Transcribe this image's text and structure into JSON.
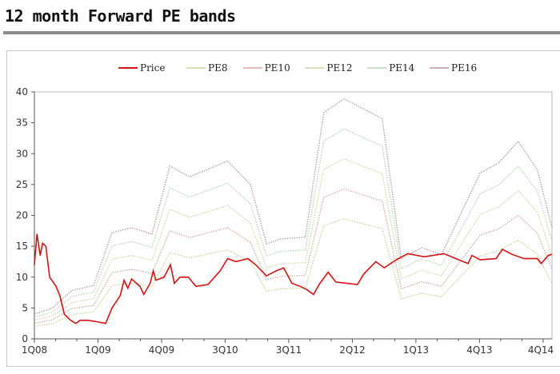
{
  "header": {
    "title": "12 month Forward PE bands"
  },
  "chart_data": {
    "type": "line",
    "title": "12 month Forward PE bands",
    "xlabel": "",
    "ylabel": "",
    "ylim": [
      0,
      40
    ],
    "yticks": [
      0,
      5,
      10,
      15,
      20,
      25,
      30,
      35,
      40
    ],
    "xlim": [
      0,
      8.14
    ],
    "xtick_labels": [
      "1Q08",
      "1Q09",
      "4Q09",
      "3Q10",
      "3Q11",
      "2Q12",
      "1Q13",
      "4Q13",
      "4Q14"
    ],
    "legend_position": "top-center",
    "grid": false,
    "band_x": [
      0,
      0.28,
      0.59,
      0.93,
      1.22,
      1.53,
      1.85,
      2.13,
      2.44,
      3.04,
      3.4,
      3.65,
      3.86,
      4.26,
      4.55,
      4.87,
      5.47,
      5.77,
      6.09,
      6.4,
      7.01,
      7.3,
      7.61,
      7.91,
      8.14
    ],
    "series": [
      {
        "name": "Price",
        "color": "#d01414",
        "style": "solid",
        "x": [
          0,
          0.04,
          0.09,
          0.13,
          0.18,
          0.24,
          0.34,
          0.4,
          0.47,
          0.57,
          0.65,
          0.72,
          0.84,
          0.97,
          1.12,
          1.22,
          1.35,
          1.41,
          1.47,
          1.53,
          1.66,
          1.72,
          1.82,
          1.87,
          1.91,
          2.04,
          2.14,
          2.2,
          2.29,
          2.42,
          2.54,
          2.73,
          2.92,
          3.04,
          3.17,
          3.36,
          3.48,
          3.65,
          3.8,
          3.92,
          4.05,
          4.18,
          4.28,
          4.39,
          4.49,
          4.62,
          4.74,
          5.08,
          5.18,
          5.37,
          5.5,
          5.69,
          5.87,
          6.13,
          6.44,
          6.63,
          6.82,
          6.88,
          7.01,
          7.26,
          7.36,
          7.51,
          7.7,
          7.91,
          7.97,
          8.08,
          8.14
        ],
        "values": [
          12,
          17,
          13.5,
          15.5,
          15,
          10,
          8.5,
          7,
          4,
          3,
          2.5,
          3,
          3,
          2.8,
          2.5,
          5,
          7,
          9.5,
          8.2,
          9.7,
          8.5,
          7.2,
          9,
          11,
          9.5,
          10,
          12,
          9,
          10,
          10,
          8.5,
          8.8,
          11,
          13,
          12.5,
          13,
          12,
          10.2,
          11,
          11.5,
          9,
          8.5,
          8,
          7.2,
          9,
          10.8,
          9.2,
          8.8,
          10.5,
          12.5,
          11.5,
          12.8,
          13.8,
          13.3,
          13.8,
          13,
          12.2,
          13.5,
          12.8,
          13,
          14.5,
          13.7,
          13,
          13,
          12.2,
          13.5,
          13.7
        ]
      },
      {
        "name": "PE8",
        "color": "#c9d49a",
        "style": "dotted",
        "values": [
          2.0,
          2.48,
          3.92,
          4.32,
          8.6,
          9.0,
          8.48,
          14.0,
          13.12,
          14.4,
          12.48,
          7.68,
          8.08,
          8.24,
          18.32,
          19.44,
          17.84,
          6.48,
          7.4,
          6.8,
          13.44,
          14.24,
          16.0,
          13.68,
          9.0
        ]
      },
      {
        "name": "PE10",
        "color": "#d6a89c",
        "style": "dotted",
        "values": [
          2.5,
          3.1,
          4.9,
          5.4,
          10.75,
          11.25,
          10.6,
          17.5,
          16.4,
          18,
          15.6,
          9.6,
          10.1,
          10.3,
          22.9,
          24.3,
          22.3,
          8.1,
          9.25,
          8.5,
          16.8,
          17.8,
          20,
          17.1,
          11.25
        ]
      },
      {
        "name": "PE12",
        "color": "#d2d6a0",
        "style": "dotted",
        "values": [
          3.0,
          3.72,
          5.88,
          6.48,
          12.9,
          13.5,
          12.72,
          21,
          19.68,
          21.6,
          18.72,
          11.52,
          12.12,
          12.36,
          27.48,
          29.16,
          26.76,
          9.72,
          11.1,
          10.2,
          20.16,
          21.36,
          24,
          20.52,
          13.5
        ]
      },
      {
        "name": "PE14",
        "color": "#b4d8b4",
        "style": "dotted",
        "values": [
          3.5,
          4.34,
          6.86,
          7.56,
          15.05,
          15.75,
          14.84,
          24.5,
          22.96,
          25.2,
          21.84,
          13.44,
          14.14,
          14.42,
          32.06,
          34.02,
          31.22,
          11.34,
          12.95,
          11.9,
          23.52,
          24.92,
          28,
          23.94,
          15.75
        ]
      },
      {
        "name": "PE16",
        "color": "#b894a4",
        "style": "dotted",
        "values": [
          4,
          4.96,
          7.84,
          8.64,
          17.2,
          18,
          16.96,
          28,
          26.24,
          28.8,
          24.96,
          15.36,
          16.16,
          16.48,
          36.64,
          38.88,
          35.68,
          12.96,
          14.8,
          13.6,
          26.88,
          28.48,
          32,
          27.36,
          18
        ]
      }
    ]
  }
}
